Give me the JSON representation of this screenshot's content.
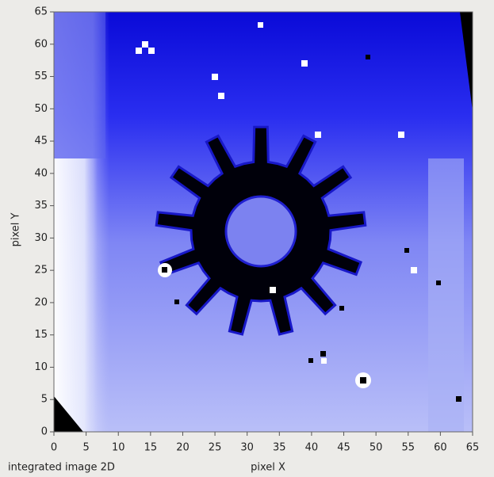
{
  "chart_data": {
    "type": "heatmap",
    "caption": "integrated image 2D",
    "xlabel": "pixel X",
    "ylabel": "pixel Y",
    "xlim": [
      0,
      65
    ],
    "ylim": [
      0,
      65
    ],
    "xticks": [
      0,
      5,
      10,
      15,
      20,
      25,
      30,
      35,
      40,
      45,
      50,
      55,
      60,
      65
    ],
    "yticks": [
      0,
      5,
      10,
      15,
      20,
      25,
      30,
      35,
      40,
      45,
      50,
      55,
      60,
      65
    ]
  }
}
